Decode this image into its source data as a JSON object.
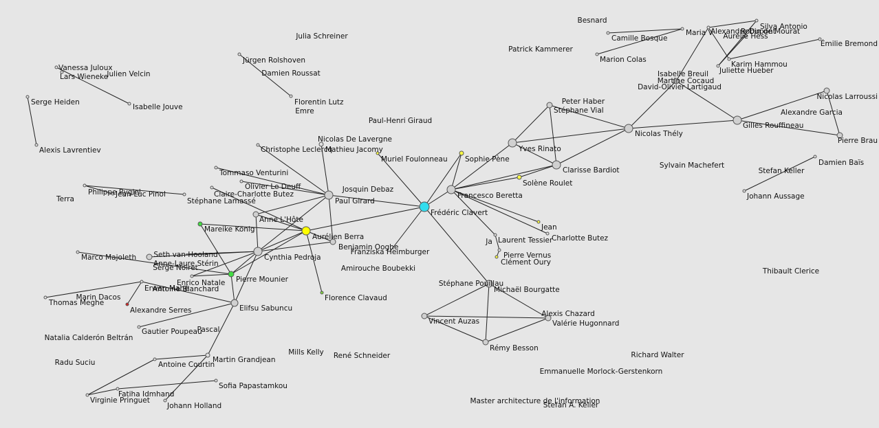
{
  "graph": {
    "nodes": [
      {
        "id": "vanessa",
        "label": "Vanessa Juloux",
        "color": "#e0e0e0",
        "size": 2
      },
      {
        "id": "lars",
        "label": "Lars Wieneke",
        "color": "#e0e0e0",
        "size": 2
      },
      {
        "id": "velcin",
        "label": "Julien Velcin",
        "color": "#e0e0e0",
        "size": 0
      },
      {
        "id": "jouve",
        "label": "Isabelle Jouve",
        "color": "#e0e0e0",
        "size": 2
      },
      {
        "id": "heiden",
        "label": "Serge Heiden",
        "color": "#e0e0e0",
        "size": 2
      },
      {
        "id": "lavrentiev",
        "label": "Alexis Lavrentiev",
        "color": "#e0e0e0",
        "size": 2
      },
      {
        "id": "schreiner",
        "label": "Julia Schreiner",
        "color": "#e0e0e0",
        "size": 0
      },
      {
        "id": "rolshoven",
        "label": "Jürgen Rolshoven",
        "color": "#e0e0e0",
        "size": 2
      },
      {
        "id": "roussat",
        "label": "Damien Roussat",
        "color": "#e0e0e0",
        "size": 0
      },
      {
        "id": "lutz",
        "label": "Florentin Lutz",
        "color": "#e0e0e0",
        "size": 2
      },
      {
        "id": "emre",
        "label": "Emre",
        "color": "#e0e0e0",
        "size": 0
      },
      {
        "id": "giraud",
        "label": "Paul-Henri Giraud",
        "color": "#e0e0e0",
        "size": 0
      },
      {
        "id": "delavergne",
        "label": "Nicolas De Lavergne",
        "color": "#e0e0e0",
        "size": 0
      },
      {
        "id": "leclercq",
        "label": "Christophe Leclercq",
        "color": "#e0e0e0",
        "size": 2
      },
      {
        "id": "jacomy",
        "label": "Mathieu Jacomy",
        "color": "#e0e0e0",
        "size": 3
      },
      {
        "id": "foulonneau",
        "label": "Muriel Foulonneau",
        "color": "#ffff44",
        "size": 2
      },
      {
        "id": "venturini",
        "label": "Tommaso Venturini",
        "color": "#e0e0e0",
        "size": 2
      },
      {
        "id": "deuff",
        "label": "Olivier Le Deuff",
        "color": "#e0e0e0",
        "size": 2
      },
      {
        "id": "butez1",
        "label": "Claire-Charlotte Butez",
        "color": "#e0e0e0",
        "size": 2
      },
      {
        "id": "rygiel",
        "label": "Philippe Rygiel",
        "color": "#e0e0e0",
        "size": 2
      },
      {
        "id": "pinol",
        "label": "Jean-Luc Pinol",
        "color": "#e0e0e0",
        "size": 2
      },
      {
        "id": "lamasse",
        "label": "Stéphane Lamassé",
        "color": "#e0e0e0",
        "size": 2
      },
      {
        "id": "terra",
        "label": "Terra",
        "color": "#e0e0e0",
        "size": 0
      },
      {
        "id": "girard",
        "label": "Paul Girard",
        "color": "#d0d0d0",
        "size": 6
      },
      {
        "id": "debaz",
        "label": "Josquin Debaz",
        "color": "#e0e0e0",
        "size": 0
      },
      {
        "id": "hote",
        "label": "Anne L'Hôte",
        "color": "#d0d0d0",
        "size": 4
      },
      {
        "id": "konig",
        "label": "Mareike König",
        "color": "#44dd44",
        "size": 3
      },
      {
        "id": "berra",
        "label": "Aurélien Berra",
        "color": "#ffff00",
        "size": 6
      },
      {
        "id": "ooghe",
        "label": "Benjamin Ooghe",
        "color": "#d0d0d0",
        "size": 4
      },
      {
        "id": "hooland",
        "label": "Seth van Hooland",
        "color": "#e0e0e0",
        "size": 0
      },
      {
        "id": "pedroja",
        "label": "Cynthia Pedroja",
        "color": "#d0d0d0",
        "size": 6
      },
      {
        "id": "majoleth",
        "label": "Marco Majoleth",
        "color": "#e0e0e0",
        "size": 2
      },
      {
        "id": "sterin",
        "label": "Anne-Laure Stérin",
        "color": "#d0d0d0",
        "size": 4
      },
      {
        "id": "noiret",
        "label": "Serge Noiret",
        "color": "#e0e0e0",
        "size": 0
      },
      {
        "id": "natale",
        "label": "Enrico Natale",
        "color": "#e0e0e0",
        "size": 2
      },
      {
        "id": "mounier",
        "label": "Pierre Mounier",
        "color": "#44dd44",
        "size": 4
      },
      {
        "id": "mahe",
        "label": "Erwan Mahé",
        "color": "#e0e0e0",
        "size": 2
      },
      {
        "id": "blanchard",
        "label": "Antoine Blanchard",
        "color": "#e0e0e0",
        "size": 0
      },
      {
        "id": "dacos",
        "label": "Marin Dacos",
        "color": "#e0e0e0",
        "size": 0
      },
      {
        "id": "meghe",
        "label": "Thomas Meghe",
        "color": "#e0e0e0",
        "size": 2
      },
      {
        "id": "serres",
        "label": "Alexandre Serres",
        "color": "#dd2222",
        "size": 2
      },
      {
        "id": "sabuncu",
        "label": "Elifsu Sabuncu",
        "color": "#d0d0d0",
        "size": 5
      },
      {
        "id": "poupeau",
        "label": "Gautier Poupeau",
        "color": "#e0e0e0",
        "size": 2
      },
      {
        "id": "calderon",
        "label": "Natalia Calderón Beltrán",
        "color": "#e0e0e0",
        "size": 0
      },
      {
        "id": "pascal",
        "label": "Pascal",
        "color": "#e0e0e0",
        "size": 0
      },
      {
        "id": "clavaud",
        "label": "Florence Clavaud",
        "color": "#88dd44",
        "size": 2
      },
      {
        "id": "heimburger",
        "label": "Franziska Heimburger",
        "color": "#e0e0e0",
        "size": 0
      },
      {
        "id": "boubekki",
        "label": "Amirouche Boubekki",
        "color": "#e0e0e0",
        "size": 0
      },
      {
        "id": "clavert",
        "label": "Frédéric Clavert",
        "color": "#33ddee",
        "size": 7
      },
      {
        "id": "pene",
        "label": "Sophie Pène",
        "color": "#ffff44",
        "size": 3
      },
      {
        "id": "beretta",
        "label": "Francesco Beretta",
        "color": "#d0d0d0",
        "size": 6
      },
      {
        "id": "rinato",
        "label": "Yves Rinato",
        "color": "#d0d0d0",
        "size": 6
      },
      {
        "id": "bardiot",
        "label": "Clarisse Bardiot",
        "color": "#d0d0d0",
        "size": 6
      },
      {
        "id": "roulet",
        "label": "Solène Roulet",
        "color": "#ffff44",
        "size": 3
      },
      {
        "id": "vial",
        "label": "Stéphane Vial",
        "color": "#d0d0d0",
        "size": 4
      },
      {
        "id": "haber",
        "label": "Peter Haber",
        "color": "#e0e0e0",
        "size": 0
      },
      {
        "id": "thely",
        "label": "Nicolas Thély",
        "color": "#d0d0d0",
        "size": 6
      },
      {
        "id": "jean",
        "label": "Jean",
        "color": "#ffff44",
        "size": 2
      },
      {
        "id": "butez2",
        "label": "Charlotte Butez",
        "color": "#e0e0e0",
        "size": 2
      },
      {
        "id": "ja",
        "label": "Ja",
        "color": "#e0e0e0",
        "size": 0
      },
      {
        "id": "tessier",
        "label": "Laurent Tessier",
        "color": "#e0e0e0",
        "size": 2
      },
      {
        "id": "vernus",
        "label": "Pierre Vernus",
        "color": "#e0e0e0",
        "size": 2
      },
      {
        "id": "oury",
        "label": "Clément Oury",
        "color": "#ffff44",
        "size": 2
      },
      {
        "id": "pouillau",
        "label": "Stéphane Pouillau",
        "color": "#e0e0e0",
        "size": 0
      },
      {
        "id": "bourgatte",
        "label": "Michaël Bourgatte",
        "color": "#d0d0d0",
        "size": 5
      },
      {
        "id": "auzas",
        "label": "Vincent Auzas",
        "color": "#d0d0d0",
        "size": 4
      },
      {
        "id": "chazard",
        "label": "Alexis Chazard",
        "color": "#e0e0e0",
        "size": 0
      },
      {
        "id": "hugonnard",
        "label": "Valérie Hugonnard",
        "color": "#d0d0d0",
        "size": 4
      },
      {
        "id": "besson",
        "label": "Rémy Besson",
        "color": "#d0d0d0",
        "size": 4
      },
      {
        "id": "kelly",
        "label": "Mills Kelly",
        "color": "#e0e0e0",
        "size": 0
      },
      {
        "id": "schneider",
        "label": "René Schneider",
        "color": "#e0e0e0",
        "size": 0
      },
      {
        "id": "suciu",
        "label": "Radu Suciu",
        "color": "#e0e0e0",
        "size": 0
      },
      {
        "id": "courtin",
        "label": "Antoine Courtin",
        "color": "#e0e0e0",
        "size": 2
      },
      {
        "id": "grandjean",
        "label": "Martin Grandjean",
        "color": "#e0e0e0",
        "size": 3
      },
      {
        "id": "papastamkou",
        "label": "Sofia Papastamkou",
        "color": "#e0e0e0",
        "size": 2
      },
      {
        "id": "idmhand",
        "label": "Fatiha Idmhand",
        "color": "#e0e0e0",
        "size": 2
      },
      {
        "id": "pringuet",
        "label": "Virginie Pringuet",
        "color": "#e0e0e0",
        "size": 2
      },
      {
        "id": "holland",
        "label": "Johann Holland",
        "color": "#e0e0e0",
        "size": 2
      },
      {
        "id": "besnard",
        "label": "Besnard",
        "color": "#e0e0e0",
        "size": 0
      },
      {
        "id": "bosque",
        "label": "Camille Bosque",
        "color": "#e0e0e0",
        "size": 2
      },
      {
        "id": "mariav",
        "label": "Maria V",
        "color": "#e0e0e0",
        "size": 2
      },
      {
        "id": "dupont",
        "label": "Alexandre Dupont",
        "color": "#e0e0e0",
        "size": 2
      },
      {
        "id": "silva",
        "label": "Silva Antonio",
        "color": "#e0e0e0",
        "size": 2
      },
      {
        "id": "mourat",
        "label": "Robin de Mourat",
        "color": "#e0e0e0",
        "size": 0
      },
      {
        "id": "hess",
        "label": "Aurélie Hess",
        "color": "#e0e0e0",
        "size": 2
      },
      {
        "id": "bremond",
        "label": "Émilie Bremond",
        "color": "#e0e0e0",
        "size": 2
      },
      {
        "id": "kammerer",
        "label": "Patrick Kammerer",
        "color": "#e0e0e0",
        "size": 0
      },
      {
        "id": "colas",
        "label": "Marion Colas",
        "color": "#e0e0e0",
        "size": 2
      },
      {
        "id": "hammou",
        "label": "Karim Hammou",
        "color": "#e0e0e0",
        "size": 2
      },
      {
        "id": "hueber",
        "label": "Juliette Hueber",
        "color": "#e0e0e0",
        "size": 2
      },
      {
        "id": "breuil",
        "label": "Isabelle Breuil",
        "color": "#d0d0d0",
        "size": 4
      },
      {
        "id": "cocaud",
        "label": "Martine Cocaud",
        "color": "#e0e0e0",
        "size": 0
      },
      {
        "id": "lartigaud",
        "label": "David-Olivier Lartigaud",
        "color": "#e0e0e0",
        "size": 0
      },
      {
        "id": "rouffineau",
        "label": "Gilles Rouffineau",
        "color": "#d0d0d0",
        "size": 6
      },
      {
        "id": "larroussi",
        "label": "Nicolas Larroussi",
        "color": "#d0d0d0",
        "size": 4
      },
      {
        "id": "garcia",
        "label": "Alexandre Garcia",
        "color": "#e0e0e0",
        "size": 0
      },
      {
        "id": "braun",
        "label": "Pierre Brau",
        "color": "#d0d0d0",
        "size": 4
      },
      {
        "id": "machefert",
        "label": "Sylvain Machefert",
        "color": "#e0e0e0",
        "size": 0
      },
      {
        "id": "bais",
        "label": "Damien Baïs",
        "color": "#e0e0e0",
        "size": 2
      },
      {
        "id": "kellerstefan",
        "label": "Stefan Keller",
        "color": "#e0e0e0",
        "size": 0
      },
      {
        "id": "aussage",
        "label": "Johann Aussage",
        "color": "#e0e0e0",
        "size": 2
      },
      {
        "id": "clerice",
        "label": "Thibault Clerice",
        "color": "#e0e0e0",
        "size": 0
      },
      {
        "id": "walter",
        "label": "Richard Walter",
        "color": "#e0e0e0",
        "size": 0
      },
      {
        "id": "morlock",
        "label": "Emmanuelle Morlock-Gerstenkorn",
        "color": "#e0e0e0",
        "size": 0
      },
      {
        "id": "master",
        "label": "Master architecture de l'information",
        "color": "#e0e0e0",
        "size": 0
      },
      {
        "id": "kellerstefan2",
        "label": "Stefan A. Keller",
        "color": "#e0e0e0",
        "size": 0
      }
    ],
    "edges": [
      [
        "vanessa",
        "jouve"
      ],
      [
        "heiden",
        "lavrentiev"
      ],
      [
        "rolshoven",
        "lutz"
      ],
      [
        "rygiel",
        "lamasse"
      ],
      [
        "rygiel",
        "pinol"
      ],
      [
        "leclercq",
        "girard"
      ],
      [
        "jacomy",
        "girard"
      ],
      [
        "deuff",
        "girard"
      ],
      [
        "venturini",
        "girard"
      ],
      [
        "butez1",
        "berra"
      ],
      [
        "girard",
        "hote"
      ],
      [
        "girard",
        "pedroja"
      ],
      [
        "girard",
        "clavert"
      ],
      [
        "girard",
        "ooghe"
      ],
      [
        "hote",
        "berra"
      ],
      [
        "hote",
        "pedroja"
      ],
      [
        "konig",
        "berra"
      ],
      [
        "konig",
        "mounier"
      ],
      [
        "berra",
        "pedroja"
      ],
      [
        "berra",
        "clavert"
      ],
      [
        "berra",
        "clavaud"
      ],
      [
        "berra",
        "ooghe"
      ],
      [
        "berra",
        "mounier"
      ],
      [
        "pedroja",
        "ooghe"
      ],
      [
        "pedroja",
        "sterin"
      ],
      [
        "pedroja",
        "mounier"
      ],
      [
        "pedroja",
        "sabuncu"
      ],
      [
        "pedroja",
        "natale"
      ],
      [
        "pedroja",
        "hooland"
      ],
      [
        "majoleth",
        "mounier"
      ],
      [
        "mahe",
        "meghe"
      ],
      [
        "mahe",
        "serres"
      ],
      [
        "mahe",
        "sabuncu"
      ],
      [
        "natale",
        "mounier"
      ],
      [
        "mounier",
        "sabuncu"
      ],
      [
        "sabuncu",
        "poupeau"
      ],
      [
        "sabuncu",
        "grandjean"
      ],
      [
        "grandjean",
        "courtin"
      ],
      [
        "grandjean",
        "holland"
      ],
      [
        "courtin",
        "pringuet"
      ],
      [
        "papastamkou",
        "idmhand"
      ],
      [
        "idmhand",
        "pringuet"
      ],
      [
        "clavert",
        "foulonneau"
      ],
      [
        "clavert",
        "pene"
      ],
      [
        "clavert",
        "beretta"
      ],
      [
        "clavert",
        "bourgatte"
      ],
      [
        "clavert",
        "heimburger"
      ],
      [
        "beretta",
        "rinato"
      ],
      [
        "beretta",
        "bardiot"
      ],
      [
        "beretta",
        "roulet"
      ],
      [
        "beretta",
        "jean"
      ],
      [
        "beretta",
        "butez2"
      ],
      [
        "beretta",
        "tessier"
      ],
      [
        "beretta",
        "pene"
      ],
      [
        "rinato",
        "vial"
      ],
      [
        "rinato",
        "bardiot"
      ],
      [
        "rinato",
        "thely"
      ],
      [
        "vial",
        "bardiot"
      ],
      [
        "vial",
        "thely"
      ],
      [
        "bardiot",
        "thely"
      ],
      [
        "bardiot",
        "roulet"
      ],
      [
        "thely",
        "breuil"
      ],
      [
        "thely",
        "rouffineau"
      ],
      [
        "rouffineau",
        "breuil"
      ],
      [
        "rouffineau",
        "larroussi"
      ],
      [
        "larroussi",
        "braun"
      ],
      [
        "rouffineau",
        "braun"
      ],
      [
        "tessier",
        "vernus"
      ],
      [
        "vernus",
        "oury"
      ],
      [
        "bourgatte",
        "auzas"
      ],
      [
        "bourgatte",
        "hugonnard"
      ],
      [
        "bourgatte",
        "besson"
      ],
      [
        "auzas",
        "hugonnard"
      ],
      [
        "auzas",
        "besson"
      ],
      [
        "hugonnard",
        "besson"
      ],
      [
        "bosque",
        "mariav"
      ],
      [
        "colas",
        "mariav"
      ],
      [
        "dupont",
        "silva"
      ],
      [
        "dupont",
        "hammou"
      ],
      [
        "hess",
        "hueber"
      ],
      [
        "hammou",
        "bremond"
      ],
      [
        "breuil",
        "dupont"
      ],
      [
        "silva",
        "hueber"
      ],
      [
        "bais",
        "aussage"
      ]
    ]
  }
}
